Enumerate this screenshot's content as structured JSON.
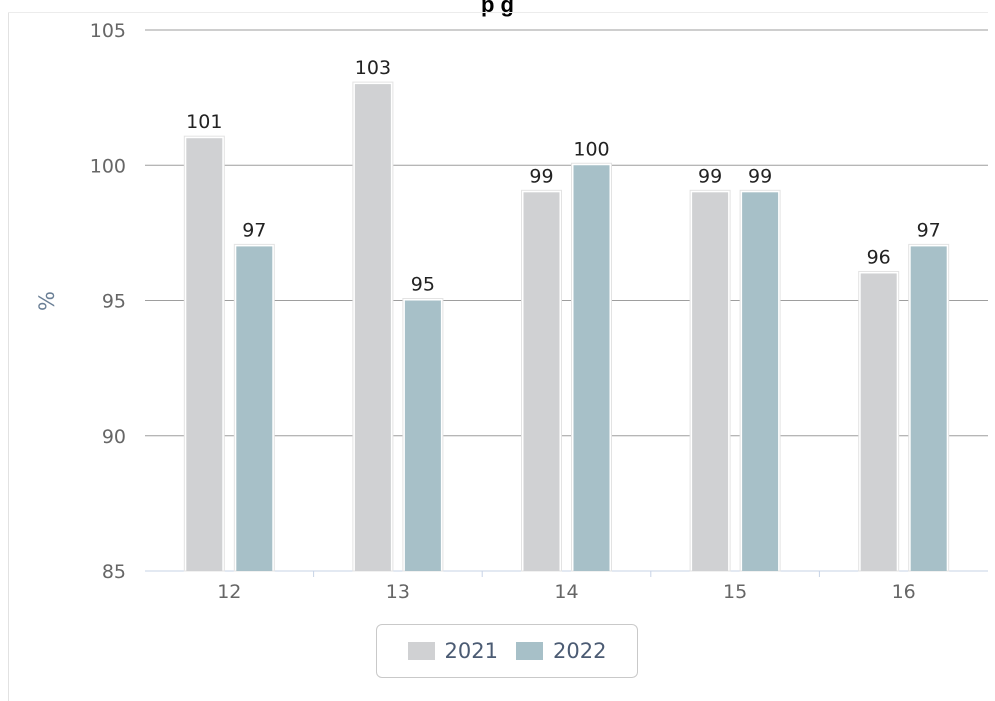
{
  "title": "p                g",
  "chart_data": {
    "type": "bar",
    "categories": [
      "12",
      "13",
      "14",
      "15",
      "16"
    ],
    "series": [
      {
        "name": "2021",
        "values": [
          101,
          103,
          99,
          99,
          96
        ],
        "color": "#d0d1d3"
      },
      {
        "name": "2022",
        "values": [
          97,
          95,
          100,
          99,
          97
        ],
        "color": "#a7c0c8"
      }
    ],
    "ylabel": "%",
    "ylim": [
      85,
      105
    ],
    "yticks": [
      85,
      90,
      95,
      100,
      105
    ],
    "grid": true,
    "legend_position": "bottom-center",
    "data_labels": true
  }
}
